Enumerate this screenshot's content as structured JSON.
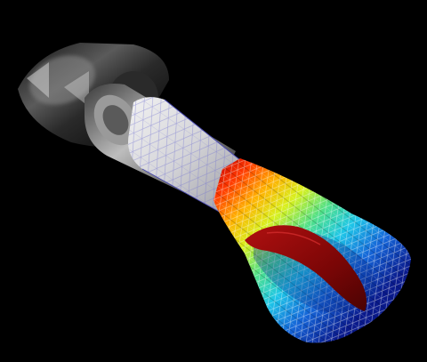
{
  "scene": {
    "background_color": "#000000",
    "description_labels": [],
    "colormap": [
      "#0a1a8c",
      "#1565d8",
      "#1ec6e8",
      "#4fe08a",
      "#d8f01e",
      "#ffb000",
      "#ff3a00",
      "#c40000"
    ],
    "mesh_color": "#c8c8cc",
    "mesh_edge_color": "#6a6adc",
    "valve_color": "#8a0a0a"
  }
}
